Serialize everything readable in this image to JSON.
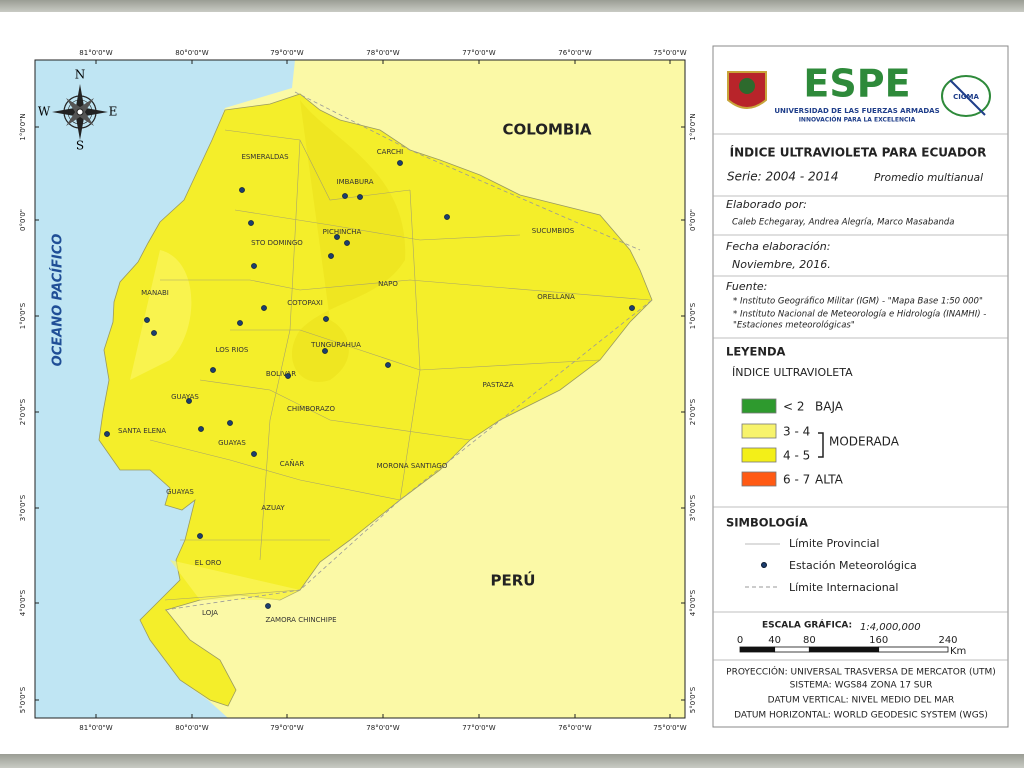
{
  "map": {
    "lon_labels": [
      "81°0'0\"W",
      "80°0'0\"W",
      "79°0'0\"W",
      "78°0'0\"W",
      "77°0'0\"W",
      "76°0'0\"W",
      "75°0'0\"W"
    ],
    "lat_labels": [
      "1°0'0\"N",
      "0°0'0\"",
      "1°0'0\"S",
      "2°0'0\"S",
      "3°0'0\"S",
      "4°0'0\"S",
      "5°0'0\"S"
    ],
    "compass": {
      "north": "N",
      "south": "S",
      "east": "E",
      "west": "W"
    },
    "countries": [
      "COLOMBIA",
      "PERÚ"
    ],
    "ocean": "OCEANO PACÍFICO",
    "provinces": [
      "ESMERALDAS",
      "CARCHI",
      "IMBABURA",
      "PICHINCHA",
      "STO DOMINGO",
      "SUCUMBIOS",
      "NAPO",
      "MANABI",
      "ORELLANA",
      "COTOPAXI",
      "LOS RIOS",
      "TUNGURAHUA",
      "BOLIVAR",
      "PASTAZA",
      "GUAYAS",
      "CHIMBORAZO",
      "SANTA ELENA",
      "GUAYAS",
      "CAÑAR",
      "MORONA SANTIAGO",
      "GUAYAS",
      "AZUAY",
      "EL ORO",
      "LOJA",
      "ZAMORA CHINCHIPE"
    ]
  },
  "panel": {
    "logo": {
      "name": "ESPE",
      "tagline": "UNIVERSIDAD DE LAS FUERZAS ARMADAS",
      "motto": "INNOVACIÓN PARA LA EXCELENCIA",
      "partner": "CIGMA"
    },
    "title": "ÍNDICE ULTRAVIOLETA PARA ECUADOR",
    "series": "Serie: 2004 - 2014",
    "subtitle": "Promedio multianual",
    "authors_label": "Elaborado por:",
    "authors": "Caleb Echegaray, Andrea Alegría, Marco Masabanda",
    "date_label": "Fecha elaboración:",
    "date": "Noviembre, 2016.",
    "source_label": "Fuente:",
    "sources": [
      "* Instituto Geográfico Militar (IGM)  - \"Mapa Base 1:50 000\"",
      "* Instituto Nacional de Meteorología e Hidrología (INAMHI) -",
      "\"Estaciones meteorológicas\""
    ],
    "legend": {
      "title": "LEYENDA",
      "subtitle": "ÍNDICE ULTRAVIOLETA",
      "items": [
        {
          "color": "#2e9a2e",
          "range": "< 2",
          "label": "BAJA"
        },
        {
          "color": "#f7f36c",
          "range": "3 - 4"
        },
        {
          "color": "#f3ef18",
          "range": "4 - 5"
        },
        {
          "color": "#ff5a14",
          "range": "6 - 7",
          "label": "ALTA"
        }
      ],
      "group_label": "MODERADA"
    },
    "symbology": {
      "title": "SIMBOLOGÍA",
      "items": [
        "Límite Provincial",
        "Estación Meteorológica",
        "Límite Internacional"
      ]
    },
    "scale": {
      "title": "ESCALA GRÁFICA:",
      "ratio": "1:4,000,000",
      "ticks": [
        0,
        40,
        80,
        160,
        240
      ],
      "unit": "Km"
    },
    "projection": [
      "PROYECCIÓN: UNIVERSAL TRASVERSA DE MERCATOR (UTM)",
      "SISTEMA: WGS84 ZONA 17 SUR",
      "DATUM VERTICAL: NIVEL MEDIO DEL MAR",
      "DATUM HORIZONTAL: WORLD GEODESIC SYSTEM  (WGS)"
    ]
  }
}
